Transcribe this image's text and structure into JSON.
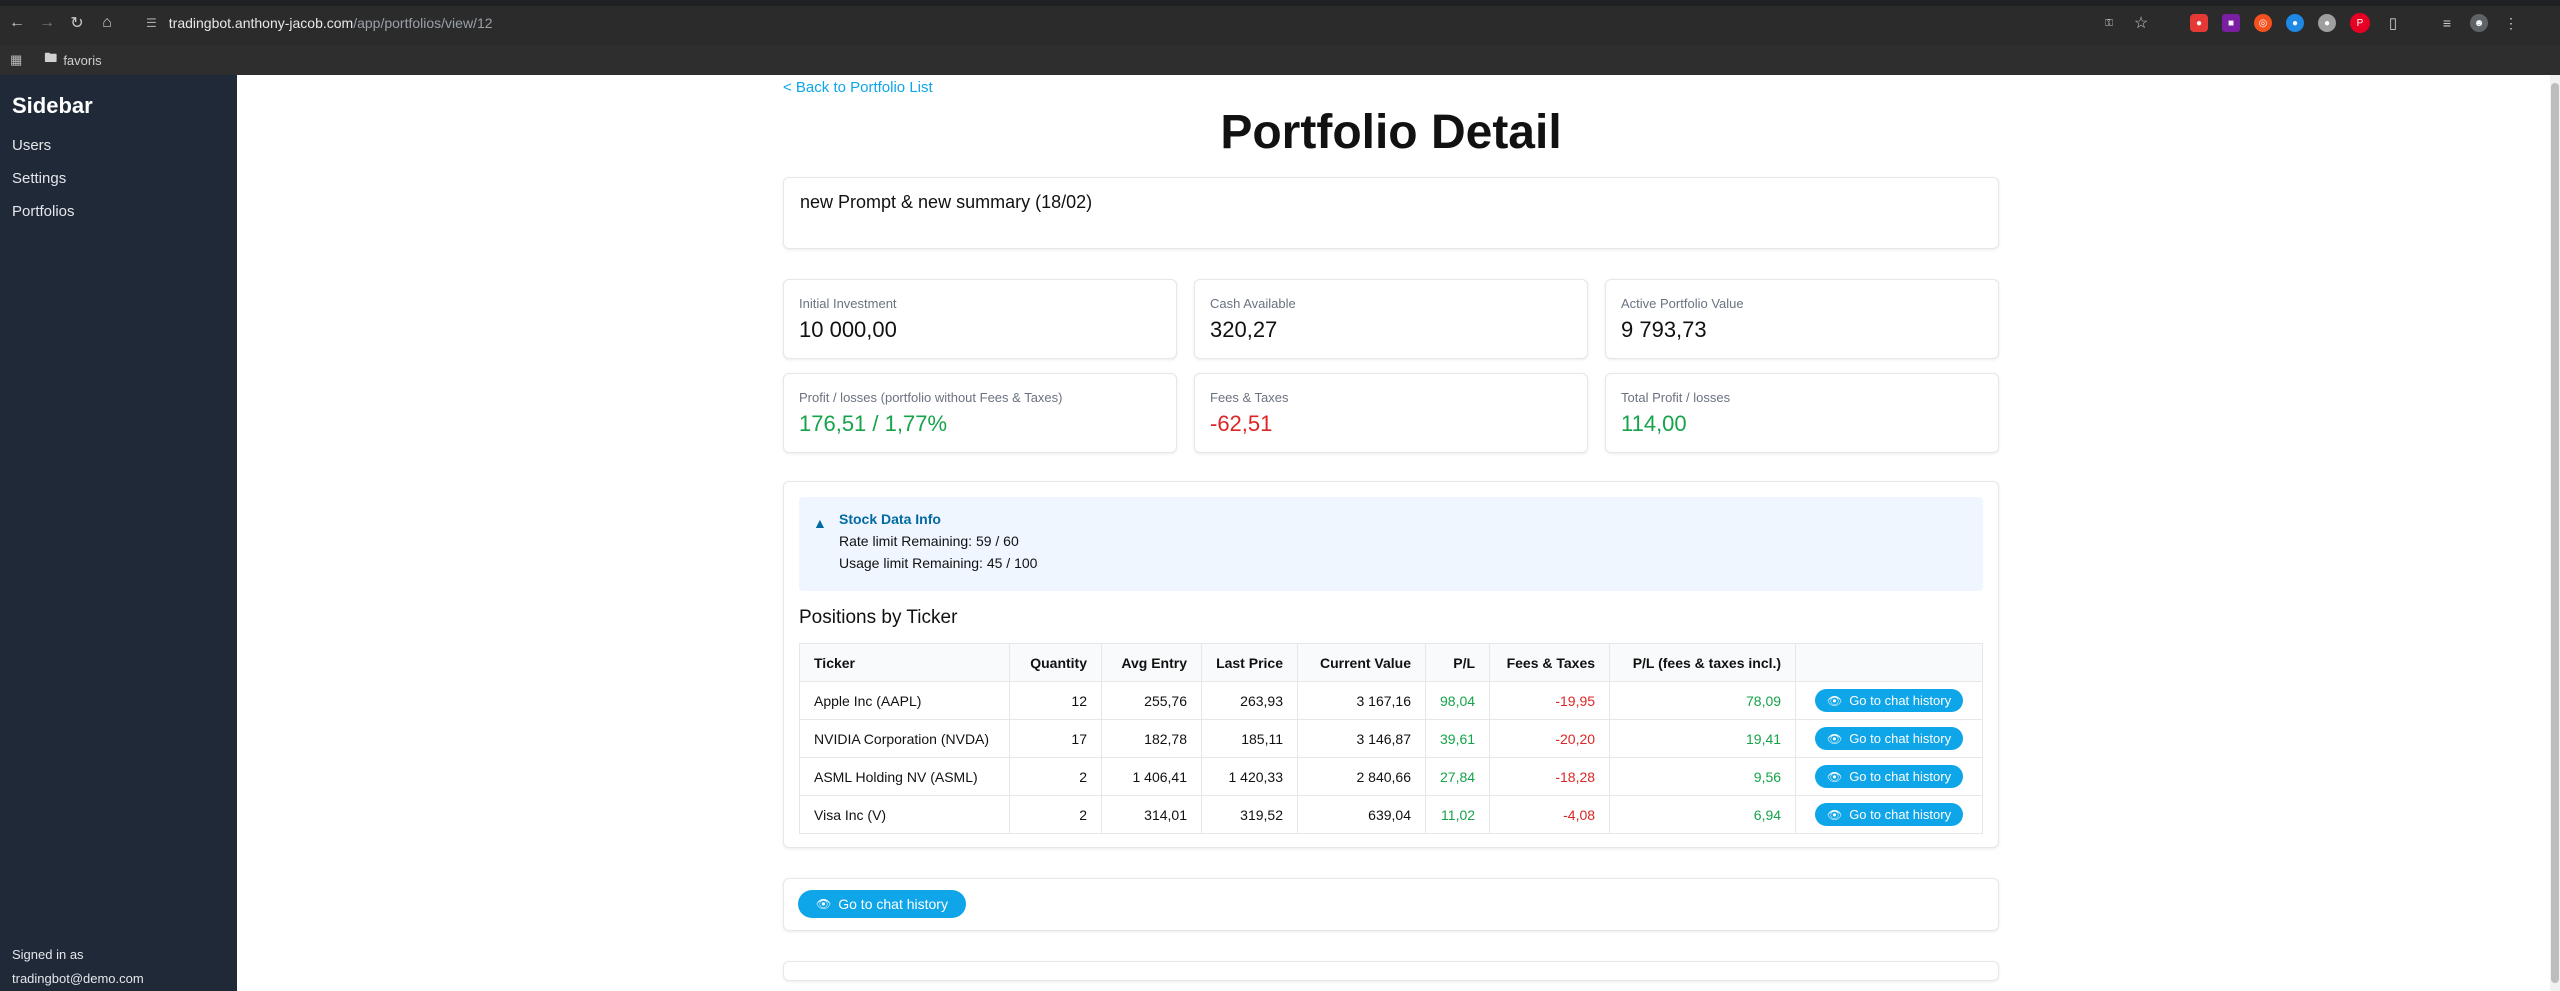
{
  "browser": {
    "url_host": "tradingbot.anthony-jacob.com",
    "url_path": "/app/portfolios/view/12",
    "bookmark_folder": "favoris"
  },
  "sidebar": {
    "title": "Sidebar",
    "items": [
      {
        "label": "Users"
      },
      {
        "label": "Settings"
      },
      {
        "label": "Portfolios"
      }
    ],
    "signed_in_label": "Signed in as",
    "signed_in_user": "tradingbot@demo.com"
  },
  "page": {
    "back_link": "< Back to Portfolio List",
    "title": "Portfolio Detail",
    "portfolio_name": "new Prompt & new summary (18/02)"
  },
  "stats": [
    {
      "label": "Initial Investment",
      "value": "10 000,00",
      "tone": "neutral"
    },
    {
      "label": "Cash Available",
      "value": "320,27",
      "tone": "neutral"
    },
    {
      "label": "Active Portfolio Value",
      "value": "9 793,73",
      "tone": "neutral"
    },
    {
      "label": "Profit / losses (portfolio without Fees & Taxes)",
      "value": "176,51 / 1,77%",
      "tone": "pos"
    },
    {
      "label": "Fees & Taxes",
      "value": "-62,51",
      "tone": "neg"
    },
    {
      "label": "Total Profit / losses",
      "value": "114,00",
      "tone": "pos"
    }
  ],
  "stock_info": {
    "title": "Stock Data Info",
    "rate_limit": "Rate limit Remaining: 59 / 60",
    "usage_limit": "Usage limit Remaining: 45 / 100"
  },
  "positions": {
    "title": "Positions by Ticker",
    "columns": [
      "Ticker",
      "Quantity",
      "Avg Entry",
      "Last Price",
      "Current Value",
      "P/L",
      "Fees & Taxes",
      "P/L (fees & taxes incl.)",
      ""
    ],
    "rows": [
      {
        "ticker": "Apple Inc (AAPL)",
        "quantity": "12",
        "avg_entry": "255,76",
        "last_price": "263,93",
        "current_value": "3 167,16",
        "pl": "98,04",
        "fees": "-19,95",
        "pl_net": "78,09"
      },
      {
        "ticker": "NVIDIA Corporation (NVDA)",
        "quantity": "17",
        "avg_entry": "182,78",
        "last_price": "185,11",
        "current_value": "3 146,87",
        "pl": "39,61",
        "fees": "-20,20",
        "pl_net": "19,41"
      },
      {
        "ticker": "ASML Holding NV (ASML)",
        "quantity": "2",
        "avg_entry": "1 406,41",
        "last_price": "1 420,33",
        "current_value": "2 840,66",
        "pl": "27,84",
        "fees": "-18,28",
        "pl_net": "9,56"
      },
      {
        "ticker": "Visa Inc (V)",
        "quantity": "2",
        "avg_entry": "314,01",
        "last_price": "319,52",
        "current_value": "639,04",
        "pl": "11,02",
        "fees": "-4,08",
        "pl_net": "6,94"
      }
    ],
    "row_button_label": "Go to chat history"
  },
  "bottom_button_label": "Go to chat history",
  "colors": {
    "sidebar_bg": "#1f2937",
    "accent": "#0ea5e9",
    "positive": "#16a34a",
    "negative": "#dc2626"
  }
}
